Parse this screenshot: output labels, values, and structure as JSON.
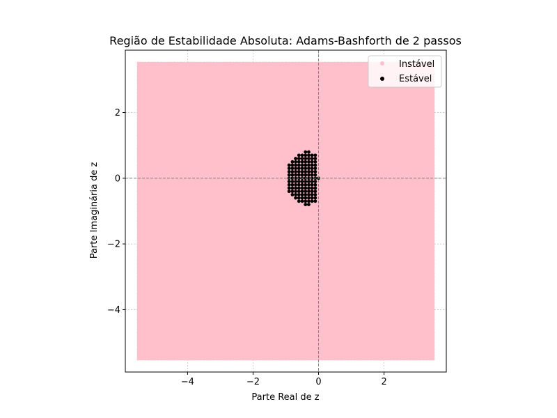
{
  "chart_data": {
    "type": "scatter",
    "title": "Região de Estabilidade Absoluta: Adams-Bashforth de 2 passos",
    "xlabel": "Parte Real de z",
    "ylabel": "Parte Imaginária de z",
    "xlim": [
      -5.9,
      3.9
    ],
    "ylim": [
      -5.9,
      3.9
    ],
    "xticks": [
      -4,
      -2,
      0,
      2
    ],
    "yticks": [
      -4,
      -2,
      0,
      2
    ],
    "tick_labels_x": [
      "−4",
      "−2",
      "0",
      "2"
    ],
    "tick_labels_y": [
      "−4",
      "−2",
      "0",
      "2"
    ],
    "grid": true,
    "legend_placement": "top-right",
    "series": [
      {
        "name": "Instável",
        "color": "#ffc0cb",
        "grid_region": {
          "x": [
            -5.5,
            3.5
          ],
          "y": [
            -5.5,
            3.5
          ],
          "step": 0.1
        }
      },
      {
        "name": "Estável",
        "color": "#000000",
        "grid_region": {
          "x": [
            -0.9,
            0.0
          ],
          "y": [
            -0.8,
            0.8
          ],
          "step": 0.1
        }
      }
    ],
    "reference_lines": {
      "x": 0,
      "y": 0,
      "color": "#808080",
      "style": "dashed"
    }
  }
}
